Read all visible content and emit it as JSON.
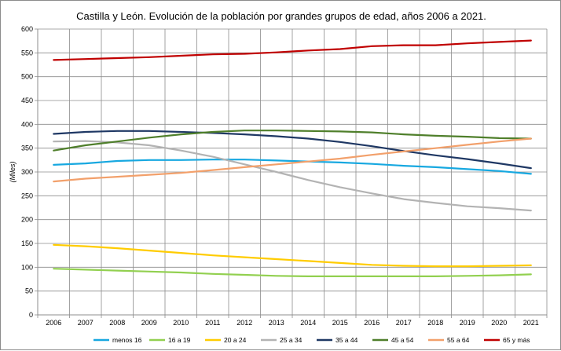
{
  "chart_data": {
    "type": "line",
    "title": "Castilla y León. Evolución de la población por grandes grupos de edad, años 2006 a 2021.",
    "ylabel": "(Miles)",
    "xlabel": "",
    "ylim": [
      0,
      600
    ],
    "ytick_step": 50,
    "grid": true,
    "legend_position": "bottom",
    "categories": [
      "2006",
      "2007",
      "2008",
      "2009",
      "2010",
      "2011",
      "2012",
      "2013",
      "2014",
      "2015",
      "2016",
      "2017",
      "2018",
      "2019",
      "2020",
      "2021"
    ],
    "series": [
      {
        "name": "menos 16",
        "color": "#17a8e0",
        "values": [
          315,
          318,
          323,
          325,
          325,
          326,
          326,
          324,
          322,
          320,
          317,
          313,
          310,
          306,
          302,
          296
        ]
      },
      {
        "name": "16 a 19",
        "color": "#92d050",
        "values": [
          97,
          95,
          93,
          91,
          89,
          86,
          84,
          82,
          81,
          81,
          81,
          81,
          81,
          82,
          83,
          85
        ]
      },
      {
        "name": "20 a 24",
        "color": "#ffcc00",
        "values": [
          147,
          144,
          140,
          135,
          130,
          125,
          121,
          117,
          113,
          109,
          105,
          103,
          102,
          102,
          103,
          104
        ]
      },
      {
        "name": "25 a 34",
        "color": "#b3b3b3",
        "values": [
          364,
          365,
          362,
          356,
          345,
          332,
          316,
          300,
          283,
          268,
          255,
          243,
          235,
          228,
          224,
          219
        ]
      },
      {
        "name": "35 a 44",
        "color": "#1f3864",
        "values": [
          380,
          384,
          386,
          386,
          384,
          382,
          379,
          375,
          370,
          363,
          354,
          344,
          335,
          327,
          318,
          308
        ]
      },
      {
        "name": "45 a 54",
        "color": "#4f7f2b",
        "values": [
          345,
          356,
          364,
          372,
          379,
          384,
          387,
          387,
          386,
          385,
          383,
          379,
          376,
          374,
          371,
          370
        ]
      },
      {
        "name": "55 a 64",
        "color": "#f2a06b",
        "values": [
          280,
          286,
          290,
          294,
          298,
          304,
          310,
          316,
          322,
          328,
          336,
          343,
          350,
          357,
          364,
          370
        ]
      },
      {
        "name": "65 y más",
        "color": "#c00000",
        "values": [
          535,
          537,
          539,
          541,
          544,
          547,
          548,
          551,
          555,
          558,
          564,
          566,
          566,
          570,
          573,
          576
        ]
      }
    ]
  }
}
